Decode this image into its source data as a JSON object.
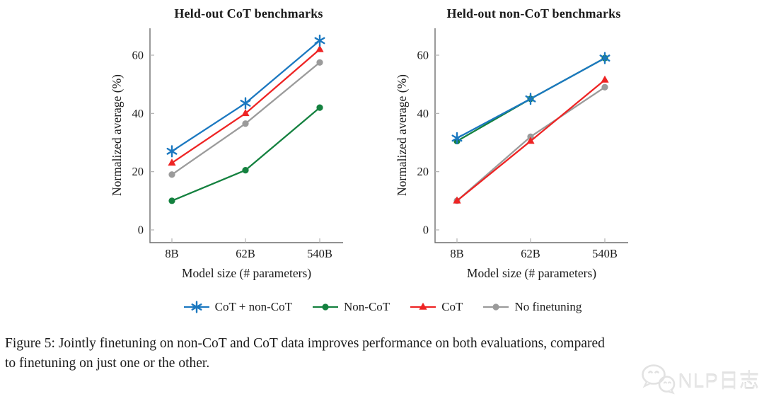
{
  "chart_data": [
    {
      "type": "line",
      "title": "Held-out CoT benchmarks",
      "xlabel": "Model size (# parameters)",
      "ylabel": "Normalized average (%)",
      "categories": [
        "8B",
        "62B",
        "540B"
      ],
      "yticks": [
        0,
        20,
        40,
        60
      ],
      "ylim": [
        -4.5,
        69
      ],
      "grid": false,
      "series": [
        {
          "name": "No finetuning",
          "marker": "circle",
          "color": "#9b9b9b",
          "values": [
            19,
            36.5,
            57.5
          ]
        },
        {
          "name": "Non-CoT",
          "marker": "circle",
          "color": "#14813f",
          "values": [
            10,
            20.5,
            42
          ]
        },
        {
          "name": "CoT",
          "marker": "triangle",
          "color": "#ee2424",
          "values": [
            23,
            40,
            62
          ]
        },
        {
          "name": "CoT + non-CoT",
          "marker": "star",
          "color": "#1b78c0",
          "values": [
            27,
            43.5,
            65
          ]
        }
      ]
    },
    {
      "type": "line",
      "title": "Held-out non-CoT benchmarks",
      "xlabel": "Model size (# parameters)",
      "ylabel": "Normalized average (%)",
      "categories": [
        "8B",
        "62B",
        "540B"
      ],
      "yticks": [
        0,
        20,
        40,
        60
      ],
      "ylim": [
        -4.5,
        69
      ],
      "grid": false,
      "series": [
        {
          "name": "No finetuning",
          "marker": "circle",
          "color": "#9b9b9b",
          "values": [
            10,
            32,
            49
          ]
        },
        {
          "name": "Non-CoT",
          "marker": "circle",
          "color": "#14813f",
          "values": [
            30.5,
            45,
            59
          ]
        },
        {
          "name": "CoT",
          "marker": "triangle",
          "color": "#ee2424",
          "values": [
            10,
            30.5,
            51.5
          ]
        },
        {
          "name": "CoT + non-CoT",
          "marker": "star",
          "color": "#1b78c0",
          "values": [
            31.5,
            45,
            59
          ]
        }
      ]
    }
  ],
  "legend": {
    "items": [
      {
        "label": "CoT + non-CoT",
        "marker": "star",
        "color": "#1b78c0"
      },
      {
        "label": "Non-CoT",
        "marker": "circle",
        "color": "#14813f"
      },
      {
        "label": "CoT",
        "marker": "triangle",
        "color": "#ee2424"
      },
      {
        "label": "No finetuning",
        "marker": "circle",
        "color": "#9b9b9b"
      }
    ]
  },
  "caption": {
    "line1": "Figure 5: Jointly finetuning on non-CoT and CoT data improves performance on both evaluations, compared",
    "line2": "to finetuning on just one or the other."
  },
  "watermark": {
    "icon": "wechat-logo-icon",
    "text": "NLP日志"
  },
  "colors": {
    "axis_line": "#6f6f6f",
    "tick_mark": "#b2b2b2",
    "text": "#1b1b1b"
  }
}
